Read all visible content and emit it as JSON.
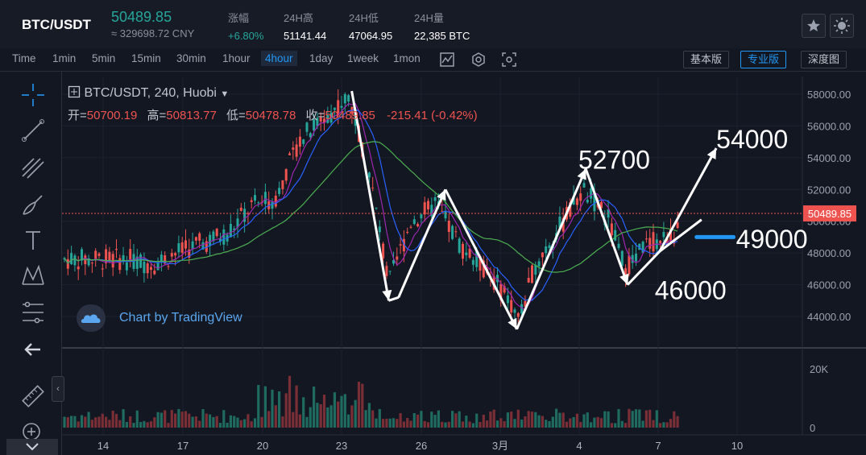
{
  "header": {
    "pair": "BTC/USDT",
    "price": "50489.85",
    "cny": "≈ 329698.72 CNY",
    "stats": [
      {
        "label": "涨幅",
        "value": "+6.80%",
        "up": true
      },
      {
        "label": "24H高",
        "value": "51141.44"
      },
      {
        "label": "24H低",
        "value": "47064.95"
      },
      {
        "label": "24H量",
        "value": "22,385 BTC"
      }
    ]
  },
  "timeframes": [
    "Time",
    "1min",
    "5min",
    "15min",
    "30min",
    "1hour",
    "4hour",
    "1day",
    "1week",
    "1mon"
  ],
  "active_timeframe": "4hour",
  "modes": [
    "基本版",
    "专业版",
    "深度图"
  ],
  "active_mode": "专业版",
  "legend": {
    "title": "BTC/USDT, 240, Huobi",
    "open_label": "开=",
    "open": "50700.19",
    "high_label": "高=",
    "high": "50813.77",
    "low_label": "低=",
    "low": "50478.78",
    "close_label": "收=",
    "close": "50489.85",
    "change": "-215.41 (-0.42%)"
  },
  "watermark": "Chart by TradingView",
  "colors": {
    "up": "#26a69a",
    "down": "#ef5350",
    "ma1": "#2962ff",
    "ma2": "#9c27b0",
    "ma3": "#4caf50",
    "marker": "#2196f3"
  },
  "chart_data": {
    "type": "candlestick",
    "ylim": [
      42000,
      59000
    ],
    "y_ticks": [
      "58000.00",
      "56000.00",
      "54000.00",
      "52000.00",
      "50000.00",
      "48000.00",
      "46000.00",
      "44000.00"
    ],
    "y_tick_values": [
      58000,
      56000,
      54000,
      52000,
      50000,
      48000,
      46000,
      44000
    ],
    "x_ticks": [
      "14",
      "17",
      "20",
      "23",
      "26",
      "3月",
      "4",
      "7",
      "10"
    ],
    "last_price_label": "50489.85",
    "last_price": 50489.85,
    "volume_ticks": [
      "20K",
      "0"
    ],
    "volume_tick_values": [
      20000,
      0
    ],
    "pattern_points": [
      {
        "t": 22.1,
        "price": 58200
      },
      {
        "t": 23.6,
        "price": 45000
      },
      {
        "t": 24.0,
        "price": 45200
      },
      {
        "t": 25.9,
        "price": 52000
      },
      {
        "t": 28.8,
        "price": 43200
      },
      {
        "t": 31.6,
        "price": 53300
      },
      {
        "t": 33.3,
        "price": 46000
      },
      {
        "t": 34.6,
        "price": 48100
      },
      {
        "t": 36.9,
        "price": 54600
      }
    ],
    "second_leg": [
      {
        "t": 34.6,
        "price": 48100
      },
      {
        "t": 36.3,
        "price": 50100
      }
    ],
    "annotations": [
      {
        "text": "54000",
        "t": 36.9,
        "price": 54600
      },
      {
        "text": "52700",
        "t": 31.3,
        "price": 53300
      },
      {
        "text": "49000",
        "t": 37.7,
        "price": 48300
      },
      {
        "text": "46000",
        "t": 34.4,
        "price": 45100
      }
    ],
    "level_line": {
      "price": 49000,
      "t_start": 36.1,
      "t_end": 37.6
    },
    "candles_approx": [
      {
        "t": 13.0,
        "price": 47600
      },
      {
        "t": 14.0,
        "price": 47300
      },
      {
        "t": 15.0,
        "price": 48000
      },
      {
        "t": 16.0,
        "price": 48600
      },
      {
        "t": 17.0,
        "price": 49200
      },
      {
        "t": 18.0,
        "price": 50900
      },
      {
        "t": 19.0,
        "price": 51500
      },
      {
        "t": 20.0,
        "price": 55200
      },
      {
        "t": 21.0,
        "price": 56600
      },
      {
        "t": 22.0,
        "price": 57800
      },
      {
        "t": 22.8,
        "price": 53200
      },
      {
        "t": 23.6,
        "price": 46000
      },
      {
        "t": 24.5,
        "price": 50000
      },
      {
        "t": 25.5,
        "price": 51000
      },
      {
        "t": 26.5,
        "price": 48500
      },
      {
        "t": 27.5,
        "price": 47000
      },
      {
        "t": 28.5,
        "price": 45000
      },
      {
        "t": 28.9,
        "price": 43800
      },
      {
        "t": 29.6,
        "price": 47500
      },
      {
        "t": 30.5,
        "price": 49500
      },
      {
        "t": 31.5,
        "price": 52000
      },
      {
        "t": 32.5,
        "price": 50200
      },
      {
        "t": 33.2,
        "price": 47000
      },
      {
        "t": 34.0,
        "price": 48500
      },
      {
        "t": 35.0,
        "price": 49000
      },
      {
        "t": 36.0,
        "price": 50500
      }
    ]
  }
}
